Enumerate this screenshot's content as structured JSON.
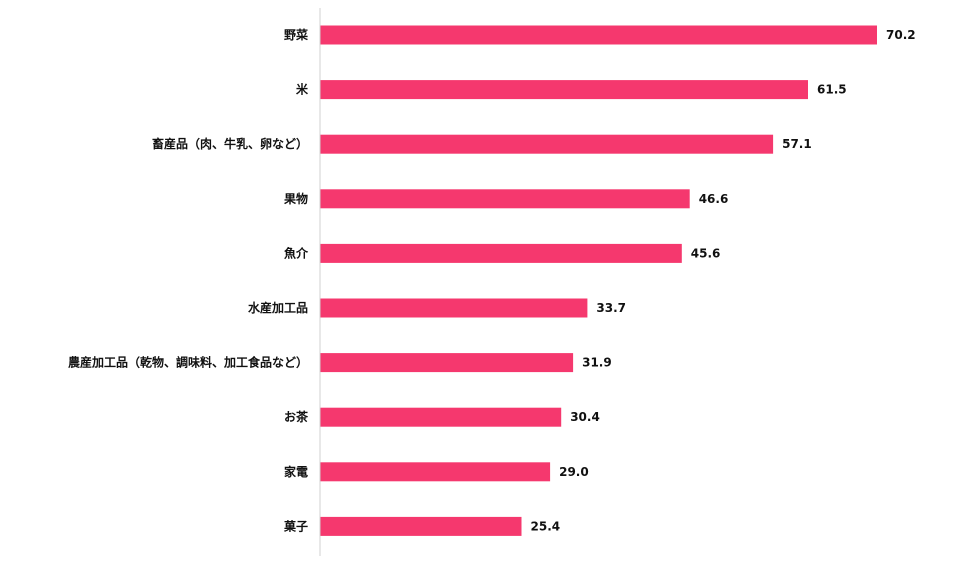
{
  "colors": {
    "bar": "#f5386e",
    "axis": "#d0d0d0",
    "text": "#111111",
    "background": "#ffffff"
  },
  "chart_data": {
    "type": "bar",
    "orientation": "horizontal",
    "title": "",
    "xlabel": "",
    "ylabel": "",
    "grid": false,
    "legend": "none",
    "xlim": [
      0,
      75
    ],
    "categories": [
      "野菜",
      "米",
      "畜産品（肉、牛乳、卵など）",
      "果物",
      "魚介",
      "水産加工品",
      "農産加工品（乾物、調味料、加工食品など）",
      "お茶",
      "家電",
      "菓子"
    ],
    "values": [
      70.2,
      61.5,
      57.1,
      46.6,
      45.6,
      33.7,
      31.9,
      30.4,
      29.0,
      25.4
    ],
    "value_labels": [
      "70.2",
      "61.5",
      "57.1",
      "46.6",
      "45.6",
      "33.7",
      "31.9",
      "30.4",
      "29.0",
      "25.4"
    ]
  }
}
